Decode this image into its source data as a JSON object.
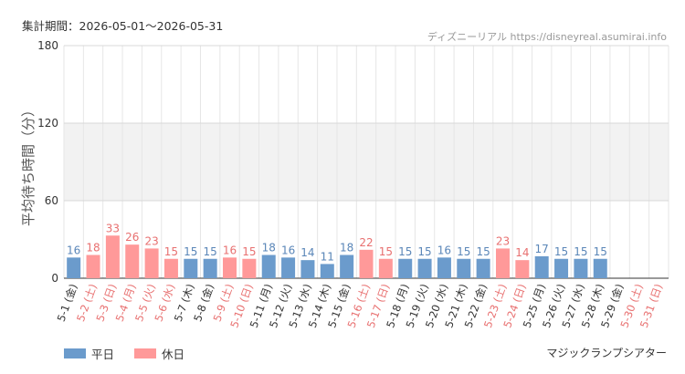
{
  "header": {
    "period": "集計期間：2026-05-01～2026-05-31",
    "source": "ディズニーリアル https://disneyreal.asumirai.info"
  },
  "footer": {
    "attraction": "マジックランプシアター"
  },
  "colors": {
    "weekday": "#6b9bcc",
    "holiday": "#ff9999",
    "weekday_text": "#5a86b8",
    "holiday_text": "#e87070",
    "band": "#f2f2f2",
    "grid": "#e6e6e6"
  },
  "chart_data": {
    "type": "bar",
    "ylabel": "平均待ち時間（分）",
    "ylim": [
      0,
      180
    ],
    "yticks": [
      "0",
      "60",
      "120",
      "180"
    ],
    "band": [
      60,
      120
    ],
    "grid": true,
    "legend_position": "bottom-left",
    "series": [
      {
        "name": "平日",
        "key": "weekday"
      },
      {
        "name": "休日",
        "key": "holiday"
      }
    ],
    "categories": [
      "5-1 (金)",
      "5-2 (土)",
      "5-3 (日)",
      "5-4 (月)",
      "5-5 (火)",
      "5-6 (水)",
      "5-7 (木)",
      "5-8 (金)",
      "5-9 (土)",
      "5-10 (日)",
      "5-11 (月)",
      "5-12 (火)",
      "5-13 (水)",
      "5-14 (木)",
      "5-15 (金)",
      "5-16 (土)",
      "5-17 (日)",
      "5-18 (月)",
      "5-19 (火)",
      "5-20 (水)",
      "5-21 (木)",
      "5-22 (金)",
      "5-23 (土)",
      "5-24 (日)",
      "5-25 (月)",
      "5-26 (火)",
      "5-27 (水)",
      "5-28 (木)",
      "5-29 (金)",
      "5-30 (土)",
      "5-31 (日)"
    ],
    "values": [
      16,
      18,
      33,
      26,
      23,
      15,
      15,
      15,
      16,
      15,
      18,
      16,
      14,
      11,
      18,
      22,
      15,
      15,
      15,
      16,
      15,
      15,
      23,
      14,
      17,
      15,
      15,
      15,
      null,
      null,
      null
    ],
    "day_type": [
      "weekday",
      "holiday",
      "holiday",
      "holiday",
      "holiday",
      "holiday",
      "weekday",
      "weekday",
      "holiday",
      "holiday",
      "weekday",
      "weekday",
      "weekday",
      "weekday",
      "weekday",
      "holiday",
      "holiday",
      "weekday",
      "weekday",
      "weekday",
      "weekday",
      "weekday",
      "holiday",
      "holiday",
      "weekday",
      "weekday",
      "weekday",
      "weekday",
      "weekday",
      "holiday",
      "holiday"
    ]
  }
}
